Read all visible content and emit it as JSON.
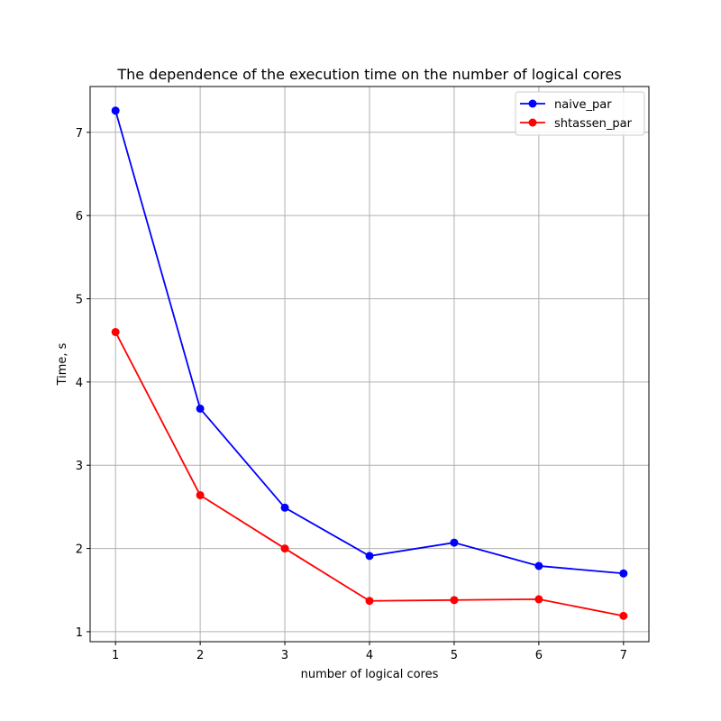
{
  "chart_data": {
    "type": "line",
    "title": "The dependence of the execution time on the number of logical cores",
    "xlabel": "number of logical cores",
    "ylabel": "Time, s",
    "x": [
      1,
      2,
      3,
      4,
      5,
      6,
      7
    ],
    "xlim": [
      0.7,
      7.3
    ],
    "ylim": [
      0.88,
      7.55
    ],
    "xticks": [
      1,
      2,
      3,
      4,
      5,
      6,
      7
    ],
    "yticks": [
      1,
      2,
      3,
      4,
      5,
      6,
      7
    ],
    "grid": true,
    "legend_position": "top-right",
    "series": [
      {
        "name": "naive_par",
        "color": "#0000ff",
        "marker": "circle",
        "values": [
          7.26,
          3.68,
          2.49,
          1.91,
          2.07,
          1.79,
          1.7
        ]
      },
      {
        "name": "shtassen_par",
        "color": "#ff0000",
        "marker": "circle",
        "values": [
          4.6,
          2.64,
          2.0,
          1.37,
          1.38,
          1.39,
          1.19
        ]
      }
    ]
  }
}
